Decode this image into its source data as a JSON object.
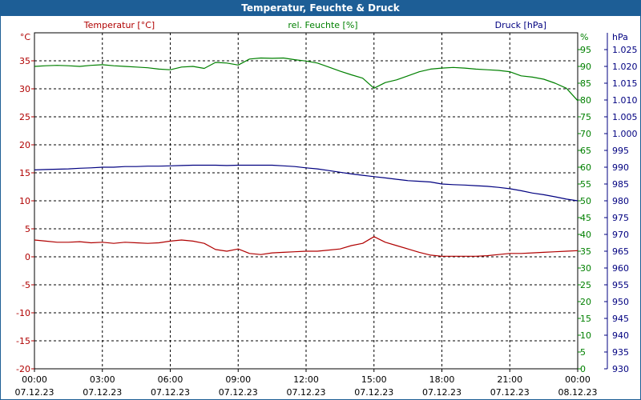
{
  "window": {
    "title": "Temperatur, Feuchte & Druck"
  },
  "chart_data": {
    "type": "line",
    "title": "Temperatur, Feuchte & Druck",
    "x_ticks": [
      {
        "time": "00:00",
        "date": "07.12.23"
      },
      {
        "time": "03:00",
        "date": "07.12.23"
      },
      {
        "time": "06:00",
        "date": "07.12.23"
      },
      {
        "time": "09:00",
        "date": "07.12.23"
      },
      {
        "time": "12:00",
        "date": "07.12.23"
      },
      {
        "time": "15:00",
        "date": "07.12.23"
      },
      {
        "time": "18:00",
        "date": "07.12.23"
      },
      {
        "time": "21:00",
        "date": "07.12.23"
      },
      {
        "time": "00:00",
        "date": "08.12.23"
      }
    ],
    "axes": {
      "temperature": {
        "label": "Temperatur [°C]",
        "unit": "°C",
        "range": [
          -20,
          40
        ],
        "ticks": [
          -20,
          -15,
          -10,
          -5,
          0,
          5,
          10,
          15,
          20,
          25,
          30,
          35
        ],
        "color": "#b00000"
      },
      "humidity": {
        "label": "rel. Feuchte [%]",
        "unit": "%",
        "range": [
          0,
          100
        ],
        "ticks": [
          0,
          5,
          10,
          15,
          20,
          25,
          30,
          35,
          40,
          45,
          50,
          55,
          60,
          65,
          70,
          75,
          80,
          85,
          90,
          95
        ],
        "color": "#008000"
      },
      "pressure": {
        "label": "Druck [hPa]",
        "unit": "hPa",
        "range": [
          930,
          1030
        ],
        "ticks": [
          930,
          935,
          940,
          945,
          950,
          955,
          960,
          965,
          970,
          975,
          980,
          985,
          990,
          995,
          1000,
          1005,
          1010,
          1015,
          1020,
          1025
        ],
        "tick_labels": [
          "930",
          "935",
          "940",
          "945",
          "950",
          "955",
          "960",
          "965",
          "970",
          "975",
          "980",
          "985",
          "990",
          "995",
          "1.000",
          "1.005",
          "1.010",
          "1.015",
          "1.020",
          "1.025"
        ],
        "color": "#000080"
      }
    },
    "grid": true,
    "series": [
      {
        "name": "Temperatur [°C]",
        "axis": "temperature",
        "color": "#b00000",
        "x": [
          0,
          0.5,
          1,
          1.5,
          2,
          2.5,
          3,
          3.5,
          4,
          4.5,
          5,
          5.5,
          6,
          6.5,
          7,
          7.5,
          8,
          8.5,
          9,
          9.5,
          10,
          10.5,
          11,
          11.5,
          12,
          12.5,
          13,
          13.5,
          14,
          14.5,
          15,
          15.5,
          16,
          16.5,
          17,
          17.5,
          18,
          18.5,
          19,
          19.5,
          20,
          20.5,
          21,
          21.5,
          22,
          22.5,
          23,
          23.5,
          24
        ],
        "values": [
          3.0,
          2.8,
          2.6,
          2.6,
          2.7,
          2.5,
          2.6,
          2.4,
          2.6,
          2.5,
          2.4,
          2.5,
          2.8,
          3.0,
          2.8,
          2.4,
          1.3,
          1.0,
          1.4,
          0.6,
          0.4,
          0.7,
          0.8,
          0.9,
          1.0,
          1.0,
          1.2,
          1.4,
          2.0,
          2.4,
          3.6,
          2.6,
          2.0,
          1.4,
          0.8,
          0.3,
          0.1,
          0.1,
          0.1,
          0.1,
          0.2,
          0.4,
          0.6,
          0.6,
          0.7,
          0.8,
          0.9,
          1.0,
          1.1
        ]
      },
      {
        "name": "rel. Feuchte [%]",
        "axis": "humidity",
        "color": "#008000",
        "x": [
          0,
          0.5,
          1,
          1.5,
          2,
          2.5,
          3,
          3.5,
          4,
          4.5,
          5,
          5.5,
          6,
          6.5,
          7,
          7.5,
          8,
          8.5,
          9,
          9.5,
          10,
          10.5,
          11,
          11.5,
          12,
          12.5,
          13,
          13.5,
          14,
          14.5,
          15,
          15.5,
          16,
          16.5,
          17,
          17.5,
          18,
          18.5,
          19,
          19.5,
          20,
          20.5,
          21,
          21.5,
          22,
          22.5,
          23,
          23.5,
          24
        ],
        "values": [
          90.0,
          90.2,
          90.3,
          90.2,
          90.0,
          90.3,
          90.5,
          90.2,
          90.0,
          89.8,
          89.6,
          89.2,
          89.0,
          89.8,
          90.0,
          89.4,
          91.2,
          91.0,
          90.4,
          92.2,
          92.5,
          92.4,
          92.5,
          92.0,
          91.6,
          91.0,
          89.8,
          88.6,
          87.5,
          86.5,
          83.5,
          85.2,
          86.0,
          87.2,
          88.4,
          89.2,
          89.5,
          89.7,
          89.5,
          89.2,
          89.0,
          88.8,
          88.4,
          87.2,
          86.8,
          86.2,
          85.0,
          83.5,
          79.8
        ]
      },
      {
        "name": "Druck [hPa]",
        "axis": "pressure",
        "color": "#000080",
        "x": [
          0,
          0.5,
          1,
          1.5,
          2,
          2.5,
          3,
          3.5,
          4,
          4.5,
          5,
          5.5,
          6,
          6.5,
          7,
          7.5,
          8,
          8.5,
          9,
          9.5,
          10,
          10.5,
          11,
          11.5,
          12,
          12.5,
          13,
          13.5,
          14,
          14.5,
          15,
          15.5,
          16,
          16.5,
          17,
          17.5,
          18,
          18.5,
          19,
          19.5,
          20,
          20.5,
          21,
          21.5,
          22,
          22.5,
          23,
          23.5,
          24
        ],
        "values": [
          989.2,
          989.3,
          989.4,
          989.5,
          989.7,
          989.8,
          990.0,
          990.0,
          990.2,
          990.2,
          990.3,
          990.3,
          990.4,
          990.5,
          990.6,
          990.6,
          990.6,
          990.5,
          990.6,
          990.6,
          990.6,
          990.6,
          990.4,
          990.2,
          989.8,
          989.5,
          989.0,
          988.5,
          988.0,
          987.6,
          987.2,
          986.8,
          986.4,
          986.0,
          985.8,
          985.6,
          985.0,
          984.8,
          984.7,
          984.5,
          984.3,
          984.0,
          983.6,
          983.0,
          982.3,
          981.8,
          981.2,
          980.5,
          980.0
        ]
      }
    ]
  }
}
